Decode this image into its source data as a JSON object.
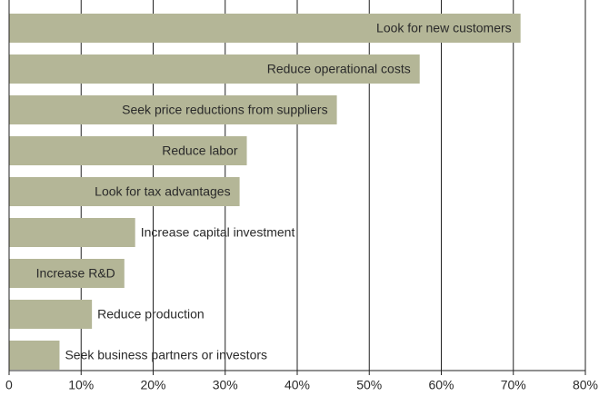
{
  "chart_data": {
    "type": "barh",
    "categories": [
      "Look for new customers",
      "Reduce operational costs",
      "Seek price reductions from suppliers",
      "Reduce labor",
      "Look for tax advantages",
      "Increase capital investment",
      "Increase R&D",
      "Reduce production",
      "Seek business partners or investors"
    ],
    "values": [
      71,
      57,
      45.5,
      33,
      32,
      17.5,
      16,
      11.5,
      7
    ],
    "color": "#b4b697",
    "xlim": [
      0,
      80
    ],
    "xticks": [
      0,
      {
        "value": 10,
        "label": "10%"
      },
      {
        "value": 20,
        "label": "20%"
      },
      {
        "value": 30,
        "label": "30%"
      },
      {
        "value": 40,
        "label": "40%"
      },
      {
        "value": 50,
        "label": "50%"
      },
      {
        "value": 60,
        "label": "60%"
      },
      {
        "value": 70,
        "label": "70%"
      },
      {
        "value": 80,
        "label": "80%"
      }
    ],
    "grid": true
  }
}
